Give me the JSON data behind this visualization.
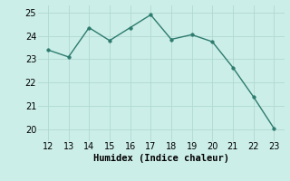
{
  "x": [
    12,
    13,
    14,
    15,
    16,
    17,
    18,
    19,
    20,
    21,
    22,
    23
  ],
  "y": [
    23.4,
    23.1,
    24.35,
    23.8,
    24.35,
    24.9,
    23.85,
    24.05,
    23.75,
    22.65,
    21.4,
    20.05
  ],
  "line_color": "#2d7b6e",
  "marker_color": "#2d7b6e",
  "bg_color": "#cceee8",
  "grid_color": "#b0d8d2",
  "xlabel": "Humidex (Indice chaleur)",
  "xlabel_fontsize": 7.5,
  "tick_fontsize": 7,
  "xlim": [
    11.5,
    23.5
  ],
  "ylim": [
    19.5,
    25.3
  ],
  "yticks": [
    20,
    21,
    22,
    23,
    24,
    25
  ],
  "xticks": [
    12,
    13,
    14,
    15,
    16,
    17,
    18,
    19,
    20,
    21,
    22,
    23
  ]
}
